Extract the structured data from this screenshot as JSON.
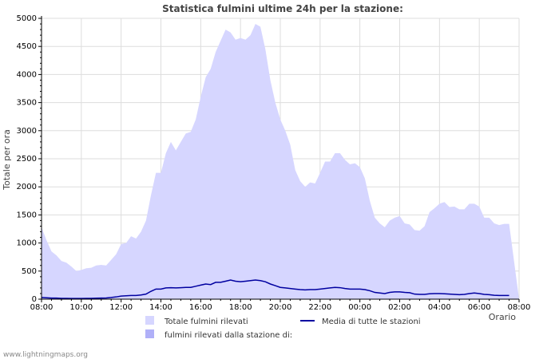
{
  "chart_data": {
    "type": "area",
    "title": "Statistica fulmini ultime 24h per la stazione:",
    "ylabel": "Totale per ora",
    "xlabel": "Orario",
    "ylim": [
      0,
      5000
    ],
    "yticks": [
      0,
      500,
      1000,
      1500,
      2000,
      2500,
      3000,
      3500,
      4000,
      4500,
      5000
    ],
    "xticks": [
      "08:00",
      "10:00",
      "12:00",
      "14:00",
      "16:00",
      "18:00",
      "20:00",
      "22:00",
      "00:00",
      "02:00",
      "04:00",
      "06:00",
      "08:00"
    ],
    "x_hours": [
      0,
      0.25,
      0.5,
      0.75,
      1,
      1.25,
      1.5,
      1.75,
      2,
      2.25,
      2.5,
      2.75,
      3,
      3.25,
      3.5,
      3.75,
      4,
      4.25,
      4.5,
      4.75,
      5,
      5.25,
      5.5,
      5.75,
      6,
      6.25,
      6.5,
      6.75,
      7,
      7.25,
      7.5,
      7.75,
      8,
      8.25,
      8.5,
      8.75,
      9,
      9.25,
      9.5,
      9.75,
      10,
      10.25,
      10.5,
      10.75,
      11,
      11.25,
      11.5,
      11.75,
      12,
      12.25,
      12.5,
      12.75,
      13,
      13.25,
      13.5,
      13.75,
      14,
      14.25,
      14.5,
      14.75,
      15,
      15.25,
      15.5,
      15.75,
      16,
      16.25,
      16.5,
      16.75,
      17,
      17.25,
      17.5,
      17.75,
      18,
      18.25,
      18.5,
      18.75,
      19,
      19.25,
      19.5,
      19.75,
      20,
      20.25,
      20.5,
      20.75,
      21,
      21.25,
      21.5,
      21.75,
      22,
      22.25,
      22.5,
      22.75,
      23,
      23.25,
      23.5,
      23.75,
      24
    ],
    "series": [
      {
        "name": "Totale fulmini rilevati",
        "type": "area",
        "color": "#d6d6ff",
        "values": [
          1280,
          1050,
          850,
          780,
          680,
          650,
          580,
          500,
          520,
          550,
          560,
          600,
          610,
          600,
          700,
          800,
          980,
          1000,
          1120,
          1080,
          1200,
          1400,
          1850,
          2250,
          2250,
          2600,
          2800,
          2650,
          2800,
          2950,
          2980,
          3200,
          3600,
          3950,
          4100,
          4400,
          4600,
          4800,
          4750,
          4620,
          4650,
          4620,
          4700,
          4900,
          4850,
          4450,
          3900,
          3500,
          3200,
          3000,
          2750,
          2300,
          2100,
          2000,
          2080,
          2060,
          2250,
          2450,
          2450,
          2600,
          2600,
          2480,
          2400,
          2420,
          2350,
          2150,
          1750,
          1450,
          1350,
          1280,
          1400,
          1450,
          1480,
          1350,
          1330,
          1230,
          1220,
          1300,
          1550,
          1620,
          1700,
          1730,
          1640,
          1650,
          1600,
          1600,
          1700,
          1700,
          1650,
          1450,
          1450,
          1350,
          1320,
          1340,
          1340
        ]
      },
      {
        "name": "fulmini rilevati dalla stazione di:",
        "type": "area",
        "color": "#b0b0f8",
        "values": [
          0,
          0,
          0,
          0,
          0,
          0,
          0,
          0,
          0,
          0,
          0,
          0,
          0,
          0,
          0,
          0,
          0,
          0,
          0,
          0,
          0,
          0,
          0,
          0,
          0,
          0,
          0,
          0,
          0,
          0,
          0,
          0,
          0,
          0,
          0,
          0,
          0,
          0,
          0,
          0,
          0,
          0,
          0,
          0,
          0,
          0,
          0,
          0,
          0,
          0,
          0,
          0,
          0,
          0,
          0,
          0,
          0,
          0,
          0,
          0,
          0,
          0,
          0,
          0,
          0,
          0,
          0,
          0,
          0,
          0,
          0,
          0,
          0,
          0,
          0,
          0,
          0,
          0,
          0,
          0,
          0,
          0,
          0,
          0,
          0,
          0,
          0,
          0,
          0,
          0,
          0,
          0,
          0,
          0,
          0
        ]
      },
      {
        "name": "Media di tutte le stazioni",
        "type": "line",
        "color": "#0000a0",
        "values": [
          30,
          25,
          20,
          20,
          15,
          15,
          12,
          12,
          12,
          15,
          15,
          18,
          20,
          22,
          30,
          40,
          55,
          60,
          65,
          65,
          75,
          90,
          140,
          180,
          180,
          200,
          205,
          200,
          205,
          210,
          210,
          230,
          250,
          270,
          260,
          300,
          300,
          320,
          340,
          320,
          310,
          320,
          330,
          340,
          330,
          310,
          270,
          240,
          210,
          200,
          190,
          180,
          170,
          165,
          170,
          170,
          180,
          190,
          200,
          210,
          205,
          190,
          180,
          180,
          180,
          170,
          150,
          120,
          110,
          100,
          120,
          130,
          130,
          120,
          115,
          90,
          85,
          85,
          95,
          100,
          100,
          95,
          90,
          85,
          80,
          85,
          100,
          110,
          100,
          85,
          80,
          70,
          65,
          65,
          65
        ]
      }
    ],
    "legend": [
      {
        "label": "Totale fulmini rilevati",
        "color": "#d6d6ff",
        "kind": "box"
      },
      {
        "label": "Media di tutte le stazioni",
        "color": "#0000a0",
        "kind": "line"
      },
      {
        "label": "fulmini rilevati dalla stazione di:",
        "color": "#b0b0f8",
        "kind": "box"
      }
    ],
    "grid": true
  },
  "footer": "www.lightningmaps.org"
}
